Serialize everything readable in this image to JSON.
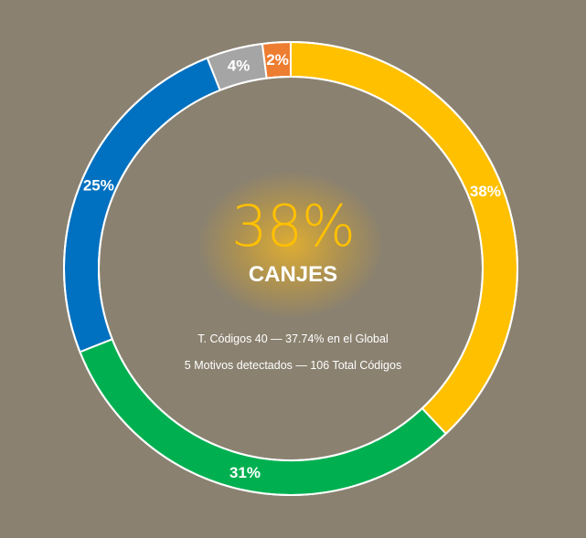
{
  "chart_data": {
    "type": "donut",
    "unit": "%",
    "start": "top",
    "direction": "clockwise",
    "slices": [
      {
        "label": "38%",
        "value": 38,
        "color": "#ffc000"
      },
      {
        "label": "31%",
        "value": 31,
        "color": "#00b050"
      },
      {
        "label": "25%",
        "value": 25,
        "color": "#0070c0"
      },
      {
        "label": "4%",
        "value": 4,
        "color": "#a5a5a5"
      },
      {
        "label": "2%",
        "value": 2,
        "color": "#ed7d31"
      }
    ],
    "ring_border_color": "#ffffff"
  },
  "center": {
    "value": "38%",
    "value_color": "#ffc000",
    "label": "CANJES",
    "line1": "T. Códigos 40 — 37.74% en el Global",
    "line2": "5 Motivos detectados — 106 Total Códigos"
  },
  "background_color": "#8a8170"
}
